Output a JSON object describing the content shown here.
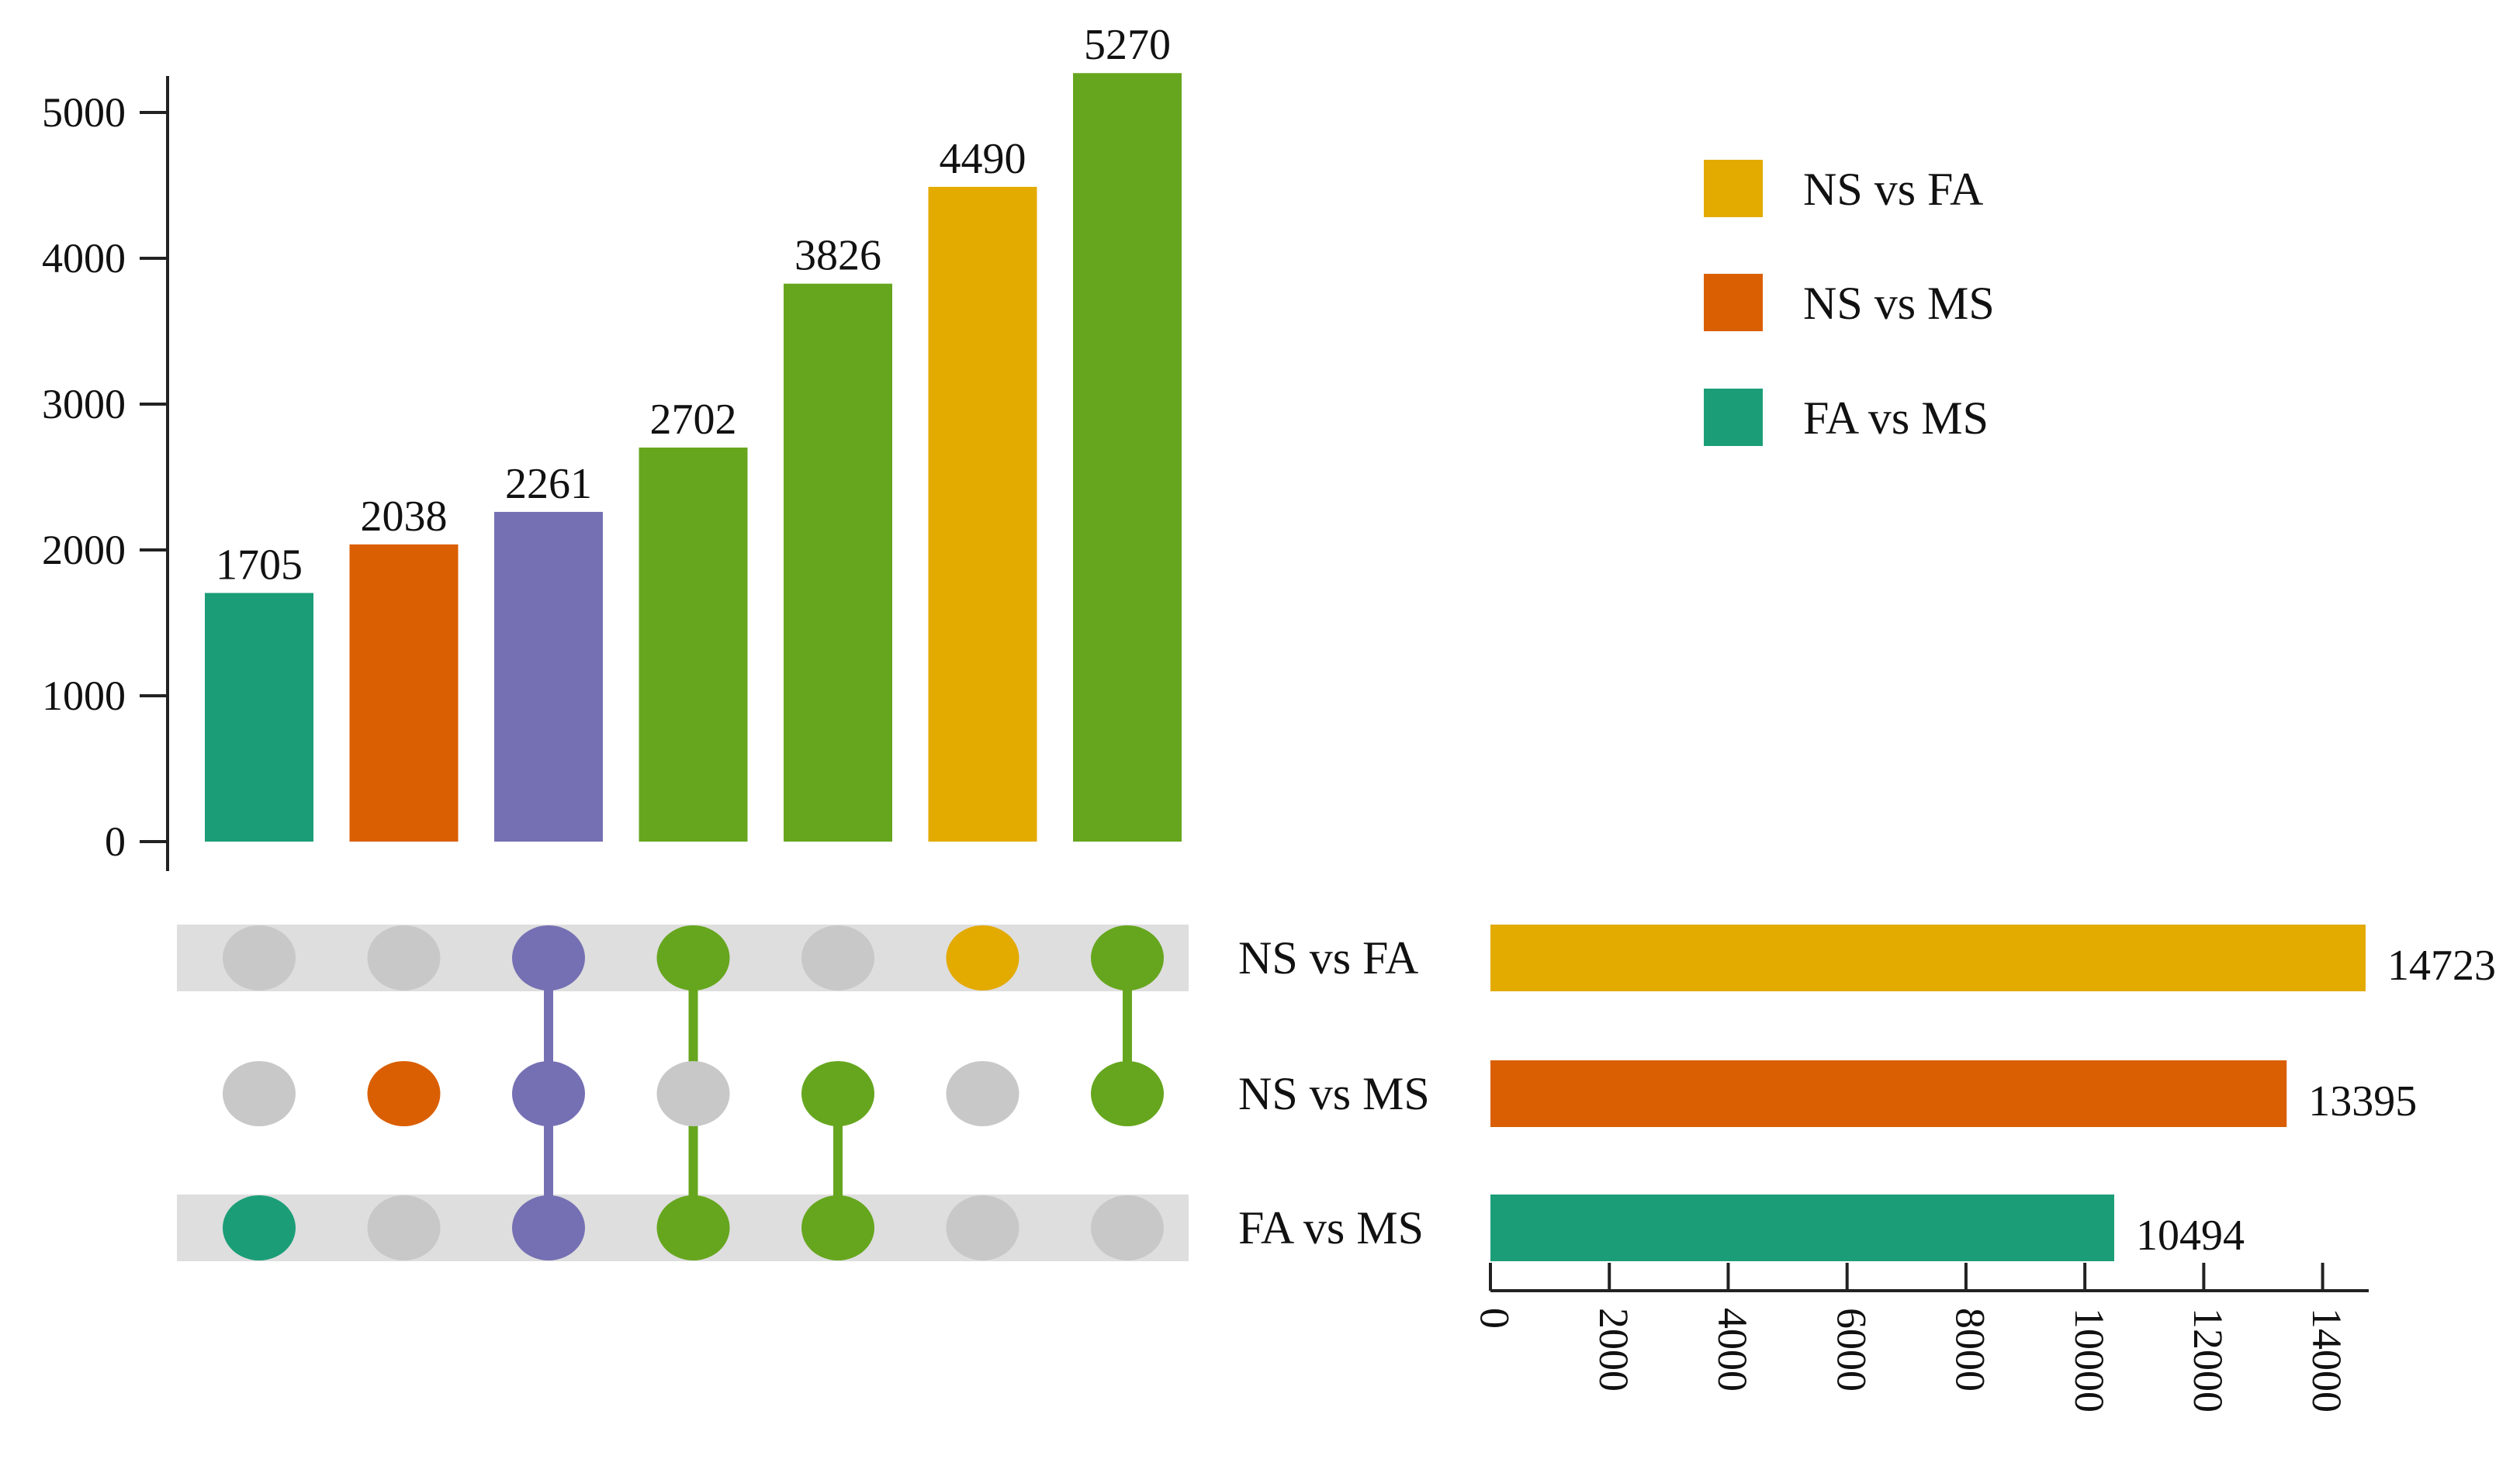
{
  "chart_data": {
    "type": "upset",
    "sets": [
      {
        "name": "NS vs FA",
        "size": 14723,
        "color": "#E3AA00"
      },
      {
        "name": "NS vs MS",
        "size": 13395,
        "color": "#DA5F02"
      },
      {
        "name": "FA vs MS",
        "size": 10494,
        "color": "#1B9E77"
      }
    ],
    "intersections": [
      {
        "sets": [
          "FA vs MS"
        ],
        "value": 1705,
        "color": "#1B9E77"
      },
      {
        "sets": [
          "NS vs MS"
        ],
        "value": 2038,
        "color": "#DA5F02"
      },
      {
        "sets": [
          "NS vs FA",
          "NS vs MS",
          "FA vs MS"
        ],
        "value": 2261,
        "color": "#7570B3"
      },
      {
        "sets": [
          "NS vs FA",
          "FA vs MS"
        ],
        "value": 2702,
        "color": "#66A61E"
      },
      {
        "sets": [
          "NS vs MS",
          "FA vs MS"
        ],
        "value": 3826,
        "color": "#66A61E"
      },
      {
        "sets": [
          "NS vs FA"
        ],
        "value": 4490,
        "color": "#E3AA00"
      },
      {
        "sets": [
          "NS vs FA",
          "NS vs MS"
        ],
        "value": 5270,
        "color": "#66A61E"
      }
    ],
    "intersection_axis": {
      "ylim": [
        0,
        5000
      ],
      "ticks": [
        "0",
        "1000",
        "2000",
        "3000",
        "4000",
        "5000"
      ]
    },
    "set_size_axis": {
      "xlim": [
        0,
        14723
      ],
      "ticks": [
        "0",
        "2000",
        "4000",
        "6000",
        "8000",
        "10000",
        "12000",
        "14000"
      ]
    },
    "inactive_dot_color": "#C8C8C8",
    "row_shade_color": "#DEDEDE",
    "legend": [
      {
        "label": "NS vs FA",
        "color": "#E3AA00"
      },
      {
        "label": "NS vs MS",
        "color": "#DA5F02"
      },
      {
        "label": "FA vs MS",
        "color": "#1B9E77"
      }
    ]
  }
}
